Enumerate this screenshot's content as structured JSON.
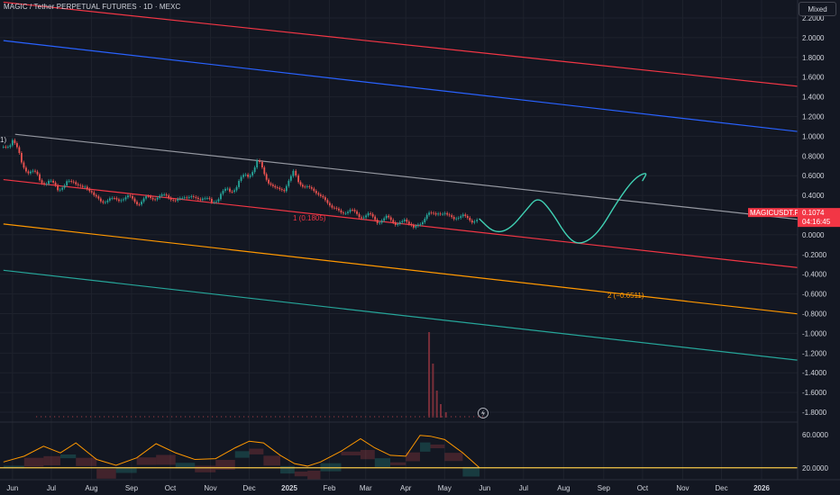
{
  "header": {
    "title": "MAGIC / Tether PERPETUAL FUTURES · 1D · MEXC"
  },
  "toolbar": {
    "scale_mode": "Mixed"
  },
  "colors": {
    "background": "#131722",
    "grid": "#1e222d",
    "text": "#d1d4dc",
    "red": "#f23645",
    "blue": "#2962ff",
    "gray": "#9598a1",
    "orange": "#ff9800",
    "green": "#26a69a",
    "teal": "#40d1b4",
    "up": "#26a69a",
    "down": "#ef5350",
    "price_label_bg": "#f23645",
    "yellow": "#f7c948"
  },
  "chart_data": {
    "type": "candlestick",
    "x_axis": {
      "labels": [
        "Jun",
        "Jul",
        "Aug",
        "Sep",
        "Oct",
        "Nov",
        "Dec",
        "2025",
        "Feb",
        "Mar",
        "Apr",
        "May",
        "Jun",
        "Jul",
        "Aug",
        "Sep",
        "Oct",
        "Nov",
        "Dec",
        "2026"
      ],
      "bold_labels": [
        "2025",
        "2026"
      ]
    },
    "price_axis": {
      "ticks": [
        "2.2000",
        "2.0000",
        "1.8000",
        "1.6000",
        "1.4000",
        "1.2000",
        "1.0000",
        "0.8000",
        "0.6000",
        "0.4000",
        "0.2000",
        "0.0000",
        "-0.2000",
        "-0.4000",
        "-0.6000",
        "-0.8000",
        "-1.0000",
        "-1.2000",
        "-1.4000",
        "-1.6000",
        "-1.8000"
      ],
      "range": [
        -1.9,
        2.3
      ]
    },
    "oscillator_axis": {
      "ticks": [
        "60.0000",
        "20.0000"
      ],
      "range": [
        10,
        75
      ],
      "reference_line": 20
    },
    "price_label": {
      "symbol": "MAGICUSDT.P",
      "price": "0.1074",
      "countdown": "04:16:45",
      "value": 0.1074
    },
    "channel_labels": [
      {
        "text": "1 (0.1805)"
      },
      {
        "text": "2 (−0.6511)"
      }
    ],
    "edge_label": "1)",
    "trend_lines": [
      {
        "color": "red",
        "from": [
          "2024-05-25",
          2.36
        ],
        "to": [
          "2026-02-10",
          1.49
        ]
      },
      {
        "color": "blue",
        "from": [
          "2024-05-25",
          1.97
        ],
        "to": [
          "2026-02-10",
          1.03
        ]
      },
      {
        "color": "gray",
        "from": [
          "2024-06-03",
          1.02
        ],
        "to": [
          "2026-02-10",
          0.14
        ]
      },
      {
        "color": "red",
        "from": [
          "2024-05-25",
          0.56
        ],
        "to": [
          "2026-02-10",
          -0.35
        ]
      },
      {
        "color": "orange",
        "from": [
          "2024-05-25",
          0.11
        ],
        "to": [
          "2026-02-10",
          -0.82
        ]
      },
      {
        "color": "green",
        "from": [
          "2024-05-25",
          -0.36
        ],
        "to": [
          "2026-02-10",
          -1.29
        ]
      }
    ],
    "price_series": [
      [
        "2024-05-25",
        0.9
      ],
      [
        "2024-06-01",
        0.95
      ],
      [
        "2024-06-08",
        0.75
      ],
      [
        "2024-06-15",
        0.62
      ],
      [
        "2024-06-22",
        0.58
      ],
      [
        "2024-06-29",
        0.52
      ],
      [
        "2024-07-06",
        0.48
      ],
      [
        "2024-07-13",
        0.52
      ],
      [
        "2024-07-20",
        0.53
      ],
      [
        "2024-07-27",
        0.48
      ],
      [
        "2024-08-03",
        0.4
      ],
      [
        "2024-08-10",
        0.34
      ],
      [
        "2024-08-17",
        0.35
      ],
      [
        "2024-08-24",
        0.38
      ],
      [
        "2024-08-31",
        0.36
      ],
      [
        "2024-09-07",
        0.34
      ],
      [
        "2024-09-14",
        0.36
      ],
      [
        "2024-09-21",
        0.4
      ],
      [
        "2024-09-28",
        0.38
      ],
      [
        "2024-10-05",
        0.36
      ],
      [
        "2024-10-12",
        0.37
      ],
      [
        "2024-10-19",
        0.39
      ],
      [
        "2024-10-26",
        0.36
      ],
      [
        "2024-11-02",
        0.34
      ],
      [
        "2024-11-09",
        0.4
      ],
      [
        "2024-11-16",
        0.46
      ],
      [
        "2024-11-23",
        0.52
      ],
      [
        "2024-11-30",
        0.62
      ],
      [
        "2024-12-07",
        0.72
      ],
      [
        "2024-12-11",
        0.68
      ],
      [
        "2024-12-16",
        0.55
      ],
      [
        "2024-12-21",
        0.44
      ],
      [
        "2024-12-28",
        0.48
      ],
      [
        "2025-01-04",
        0.62
      ],
      [
        "2025-01-08",
        0.56
      ],
      [
        "2025-01-13",
        0.48
      ],
      [
        "2025-01-20",
        0.45
      ],
      [
        "2025-01-27",
        0.38
      ],
      [
        "2025-02-03",
        0.27
      ],
      [
        "2025-02-10",
        0.24
      ],
      [
        "2025-02-17",
        0.23
      ],
      [
        "2025-02-24",
        0.21
      ],
      [
        "2025-03-03",
        0.18
      ],
      [
        "2025-03-10",
        0.16
      ],
      [
        "2025-03-17",
        0.15
      ],
      [
        "2025-03-24",
        0.14
      ],
      [
        "2025-03-31",
        0.12
      ],
      [
        "2025-04-07",
        0.1
      ],
      [
        "2025-04-14",
        0.11
      ],
      [
        "2025-04-19",
        0.24
      ],
      [
        "2025-04-26",
        0.21
      ],
      [
        "2025-05-03",
        0.2
      ],
      [
        "2025-05-10",
        0.18
      ],
      [
        "2025-05-17",
        0.17
      ],
      [
        "2025-05-24",
        0.16
      ],
      [
        "2025-05-28",
        0.14
      ]
    ],
    "projection_path": [
      [
        "2025-05-28",
        0.16
      ],
      [
        "2025-06-08",
        0.02
      ],
      [
        "2025-06-20",
        0.05
      ],
      [
        "2025-07-03",
        0.25
      ],
      [
        "2025-07-12",
        0.39
      ],
      [
        "2025-07-22",
        0.25
      ],
      [
        "2025-08-05",
        -0.05
      ],
      [
        "2025-08-15",
        -0.1
      ],
      [
        "2025-08-28",
        0.02
      ],
      [
        "2025-09-12",
        0.35
      ],
      [
        "2025-09-25",
        0.58
      ],
      [
        "2025-10-05",
        0.64
      ],
      [
        "2025-10-01",
        0.55
      ]
    ],
    "volume_series": [
      [
        "2025-04-19",
        95
      ],
      [
        "2025-04-22",
        60
      ],
      [
        "2025-04-25",
        30
      ],
      [
        "2025-04-28",
        15
      ],
      [
        "2025-05-02",
        6
      ]
    ],
    "oscillator_series": [
      [
        "2024-05-25",
        27
      ],
      [
        "2024-06-10",
        34
      ],
      [
        "2024-06-25",
        46
      ],
      [
        "2024-07-08",
        38
      ],
      [
        "2024-07-20",
        50
      ],
      [
        "2024-08-05",
        30
      ],
      [
        "2024-08-20",
        23
      ],
      [
        "2024-09-05",
        32
      ],
      [
        "2024-09-20",
        49
      ],
      [
        "2024-10-05",
        38
      ],
      [
        "2024-10-20",
        30
      ],
      [
        "2024-11-05",
        31
      ],
      [
        "2024-11-20",
        44
      ],
      [
        "2024-12-01",
        52
      ],
      [
        "2024-12-12",
        50
      ],
      [
        "2024-12-25",
        35
      ],
      [
        "2025-01-05",
        25
      ],
      [
        "2025-01-15",
        22
      ],
      [
        "2025-01-25",
        27
      ],
      [
        "2025-02-10",
        40
      ],
      [
        "2025-02-25",
        55
      ],
      [
        "2025-03-08",
        44
      ],
      [
        "2025-03-20",
        35
      ],
      [
        "2025-04-01",
        34
      ],
      [
        "2025-04-12",
        59
      ],
      [
        "2025-04-20",
        58
      ],
      [
        "2025-05-01",
        54
      ],
      [
        "2025-05-15",
        38
      ],
      [
        "2025-05-28",
        20
      ]
    ]
  }
}
